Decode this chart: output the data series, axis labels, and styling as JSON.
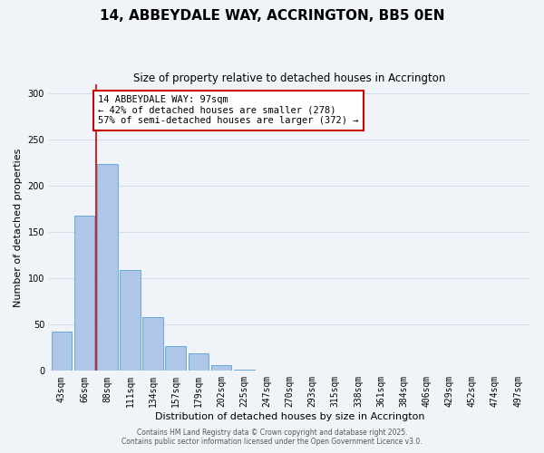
{
  "title": "14, ABBEYDALE WAY, ACCRINGTON, BB5 0EN",
  "subtitle": "Size of property relative to detached houses in Accrington",
  "xlabel": "Distribution of detached houses by size in Accrington",
  "ylabel": "Number of detached properties",
  "bar_labels": [
    "43sqm",
    "66sqm",
    "88sqm",
    "111sqm",
    "134sqm",
    "157sqm",
    "179sqm",
    "202sqm",
    "225sqm",
    "247sqm",
    "270sqm",
    "293sqm",
    "315sqm",
    "338sqm",
    "361sqm",
    "384sqm",
    "406sqm",
    "429sqm",
    "452sqm",
    "474sqm",
    "497sqm"
  ],
  "bar_values": [
    42,
    168,
    224,
    109,
    58,
    27,
    19,
    6,
    1,
    0,
    0,
    0,
    0,
    0,
    0,
    0,
    0,
    0,
    0,
    0,
    0
  ],
  "bar_color": "#aec6e8",
  "bar_edge_color": "#5a9fd4",
  "vline_x": 1.5,
  "vline_color": "#cc0000",
  "annotation_text": "14 ABBEYDALE WAY: 97sqm\n← 42% of detached houses are smaller (278)\n57% of semi-detached houses are larger (372) →",
  "annotation_box_color": "#ffffff",
  "annotation_box_edge_color": "#cc0000",
  "ylim": [
    0,
    310
  ],
  "yticks": [
    0,
    50,
    100,
    150,
    200,
    250,
    300
  ],
  "grid_color": "#d0dce8",
  "background_color": "#f0f4f8",
  "footer_line1": "Contains HM Land Registry data © Crown copyright and database right 2025.",
  "footer_line2": "Contains public sector information licensed under the Open Government Licence v3.0.",
  "title_fontsize": 11,
  "subtitle_fontsize": 8.5,
  "xlabel_fontsize": 8,
  "ylabel_fontsize": 8,
  "tick_fontsize": 7,
  "annotation_fontsize": 7.5,
  "footer_fontsize": 5.5
}
